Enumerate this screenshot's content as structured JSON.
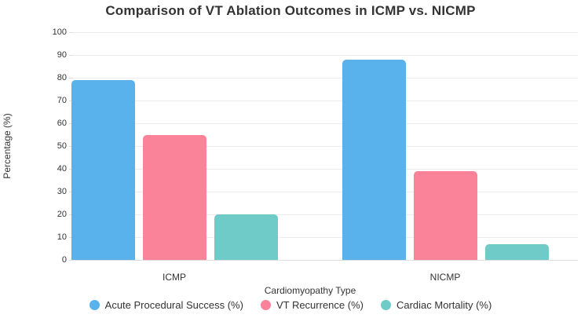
{
  "chart_data": {
    "type": "bar",
    "title": "Comparison of VT Ablation Outcomes in ICMP vs. NICMP",
    "categories": [
      "ICMP",
      "NICMP"
    ],
    "series": [
      {
        "name": "Acute Procedural Success (%)",
        "color": "#5AB2EC",
        "values": [
          79,
          88
        ]
      },
      {
        "name": "VT Recurrence (%)",
        "color": "#FB8399",
        "values": [
          55,
          39
        ]
      },
      {
        "name": "Cardiac Mortality (%)",
        "color": "#6FCBC7",
        "values": [
          20,
          7
        ]
      }
    ],
    "xlabel": "Cardiomyopathy Type",
    "ylabel": "Percentage (%)",
    "ylim": [
      0,
      100
    ],
    "ytick_step": 10,
    "grid": true,
    "legend_position": "bottom",
    "colors": {
      "title_text": "#333333",
      "axis_text": "#333333",
      "gridline": "#ececec",
      "axis_line": "#dedede",
      "background": "#ffffff"
    }
  }
}
